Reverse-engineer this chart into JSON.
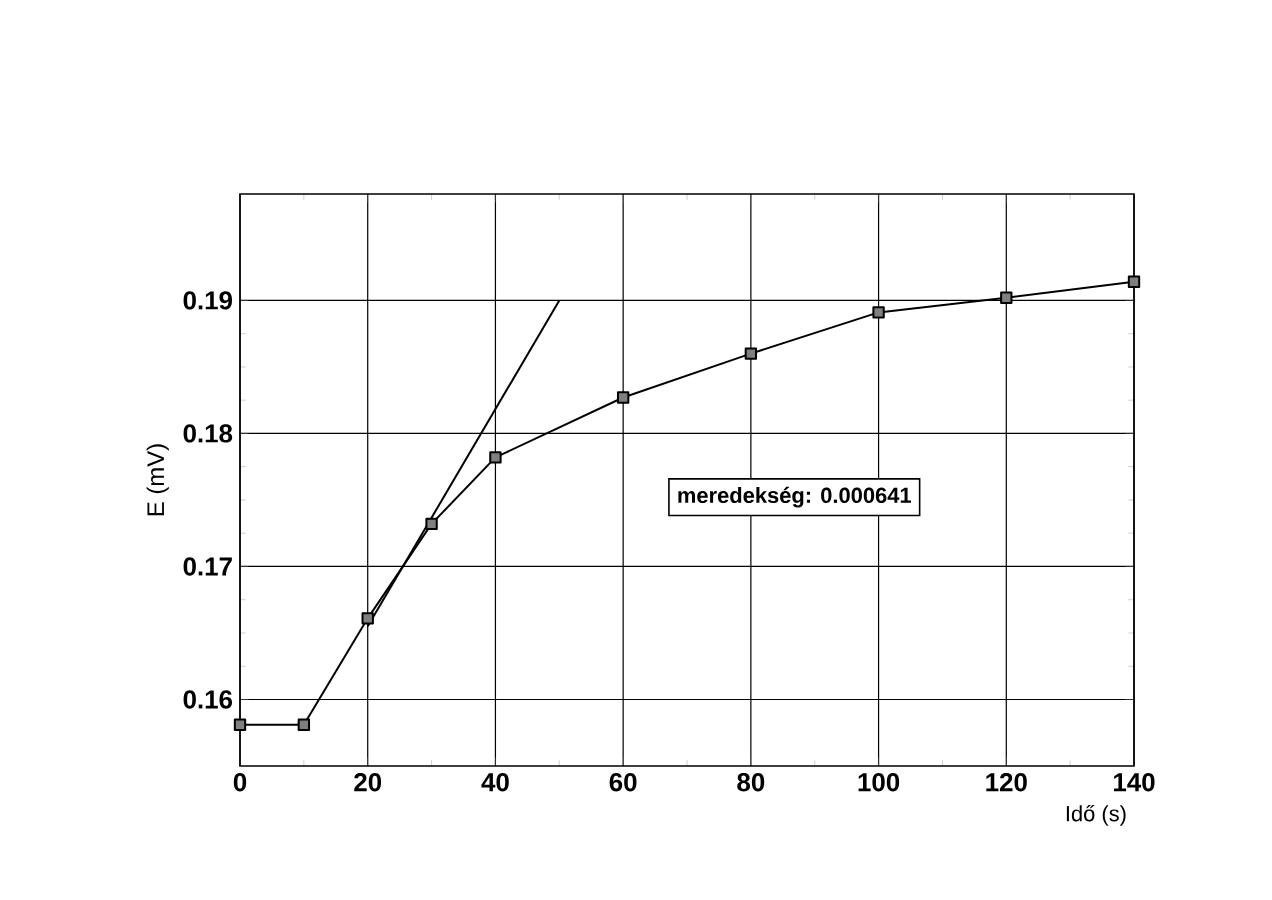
{
  "chart_data": {
    "type": "line",
    "xlabel": "Idő (s)",
    "ylabel": "E (mV)",
    "xlim": [
      0,
      140
    ],
    "ylim": [
      0.155,
      0.198
    ],
    "xticks": [
      0,
      20,
      40,
      60,
      80,
      100,
      120,
      140
    ],
    "yticks": [
      0.16,
      0.17,
      0.18,
      0.19
    ],
    "grid": true,
    "marker": "square",
    "line_style": "solid",
    "series": [
      {
        "color": "#000000",
        "x": [
          0,
          10,
          20,
          30,
          40,
          60,
          80,
          100,
          120,
          140
        ],
        "values": [
          0.1581,
          0.1581,
          0.1661,
          0.1732,
          0.1782,
          0.1827,
          0.186,
          0.1891,
          0.1902,
          0.1914
        ]
      },
      {
        "color": "#000000",
        "marker": "none",
        "x": [
          20,
          50
        ],
        "values": [
          0.1655,
          0.19
        ]
      }
    ],
    "annotations": [
      "meredekség: 0.000641"
    ]
  }
}
